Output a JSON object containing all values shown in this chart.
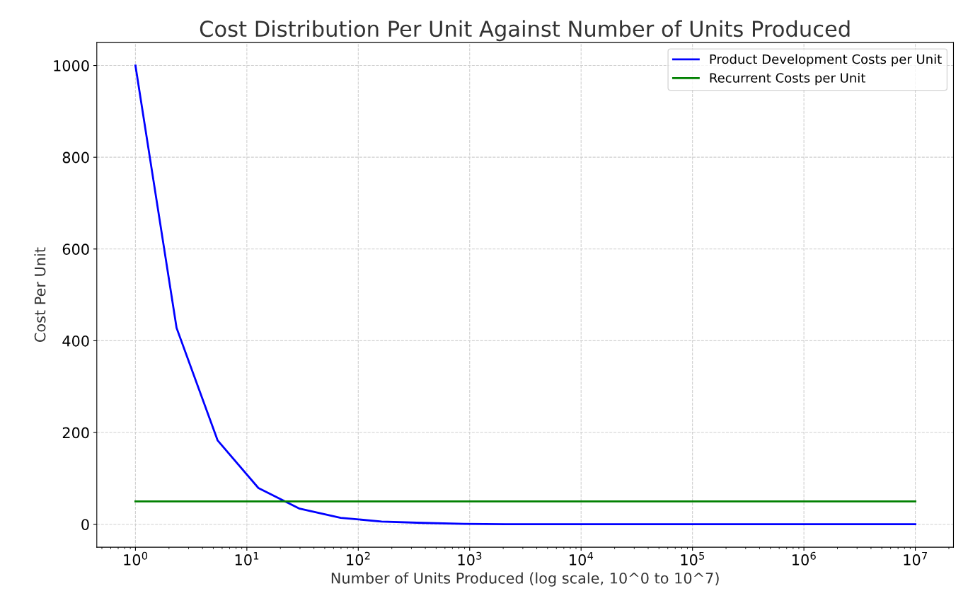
{
  "chart_data": {
    "type": "line",
    "title": "Cost Distribution Per Unit Against Number of Units Produced",
    "xlabel": "Number of Units Produced (log scale, 10^0 to 10^7)",
    "ylabel": "Cost Per Unit",
    "log": "x",
    "grid": true,
    "legend": "top right",
    "line_style": "solid",
    "marker": "none",
    "xlim": [
      0.45,
      22000000
    ],
    "ylim": [
      -50,
      1050
    ],
    "xticks": [
      {
        "value": 1,
        "label": "10$^{0}$"
      },
      {
        "value": 10,
        "label": "10$^{1}$"
      },
      {
        "value": 100,
        "label": "10$^{2}$"
      },
      {
        "value": 1000,
        "label": "10$^{3}$"
      },
      {
        "value": 10000,
        "label": "10$^{4}$"
      },
      {
        "value": 100000,
        "label": "10$^{5}$"
      },
      {
        "value": 1000000,
        "label": "10$^{6}$"
      },
      {
        "value": 10000000,
        "label": "10$^{7}$"
      }
    ],
    "yticks": [
      0,
      200,
      400,
      600,
      800,
      1000
    ],
    "series": [
      {
        "name": "Product Development Costs per Unit",
        "color": "#0000ff",
        "x": [
          1,
          2.34,
          5.46,
          12.7,
          29.8,
          69.5,
          162,
          379,
          886,
          2069,
          4833,
          11288,
          26367,
          61585,
          143845,
          335982,
          784760,
          1832981,
          4281332,
          10000000
        ],
        "values": [
          1000,
          428,
          183,
          79,
          34,
          14,
          6,
          3,
          1,
          0,
          0,
          0,
          0,
          0,
          0,
          0,
          0,
          0,
          0,
          0
        ]
      },
      {
        "name": "Recurrent Costs per Unit",
        "color": "#008000",
        "x": [
          1,
          10000000
        ],
        "values": [
          50,
          50
        ]
      }
    ]
  }
}
